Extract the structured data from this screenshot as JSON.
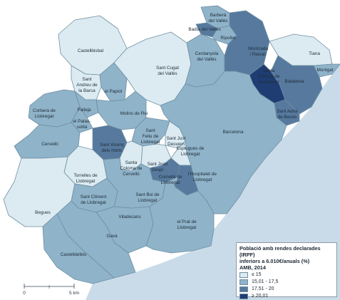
{
  "map": {
    "colors": {
      "sea": "#c9dbe8",
      "class_1": "#dcebf1",
      "class_2": "#8fb3c8",
      "class_3": "#56799d",
      "class_4": "#1f3d72"
    },
    "municipalities": [
      {
        "name": "Castellbisbal",
        "class": "class_1"
      },
      {
        "name": "Sant Andreu de la Barca",
        "class": "class_1"
      },
      {
        "name": "el Papiol",
        "class": "class_2"
      },
      {
        "name": "Sant Cugat del Vallès",
        "class": "class_1"
      },
      {
        "name": "Cerdanyola del Vallès",
        "class": "class_2"
      },
      {
        "name": "Barberà del Vallès",
        "class": "class_2"
      },
      {
        "name": "Badia del Vallès",
        "class": "class_3"
      },
      {
        "name": "Ripollet",
        "class": "class_2"
      },
      {
        "name": "Montcada i Reixac",
        "class": "class_3"
      },
      {
        "name": "Tiana",
        "class": "class_1"
      },
      {
        "name": "Montgat",
        "class": "class_2"
      },
      {
        "name": "Badalona",
        "class": "class_3"
      },
      {
        "name": "Santa Coloma de Gramenet",
        "class": "class_4"
      },
      {
        "name": "Sant Adrià de Besòs",
        "class": "class_3"
      },
      {
        "name": "Barcelona",
        "class": "class_2"
      },
      {
        "name": "Corbera de Llobregat",
        "class": "class_2"
      },
      {
        "name": "Pallejà",
        "class": "class_2"
      },
      {
        "name": "el Palau-solità",
        "class": "class_2"
      },
      {
        "name": "Molins de Rei",
        "class": "class_2"
      },
      {
        "name": "Cervelló",
        "class": "class_2"
      },
      {
        "name": "Sant Vicenç dels Horts",
        "class": "class_3"
      },
      {
        "name": "Sant Feliu de Llobregat",
        "class": "class_2"
      },
      {
        "name": "Sant Just Desvern",
        "class": "class_1"
      },
      {
        "name": "Esplugues de Llobregat",
        "class": "class_1"
      },
      {
        "name": "Santa Coloma de Cervelló",
        "class": "class_1"
      },
      {
        "name": "Sant Joan Despí",
        "class": "class_1"
      },
      {
        "name": "Torrelles de Llobregat",
        "class": "class_1"
      },
      {
        "name": "Cornellà de Llobregat",
        "class": "class_3"
      },
      {
        "name": "l'Hospitalet de Llobregat",
        "class": "class_3"
      },
      {
        "name": "Begues",
        "class": "class_1"
      },
      {
        "name": "Sant Climent de Llobregat",
        "class": "class_2"
      },
      {
        "name": "Sant Boi de Llobregat",
        "class": "class_2"
      },
      {
        "name": "Viladecans",
        "class": "class_2"
      },
      {
        "name": "el Prat de Llobregat",
        "class": "class_2"
      },
      {
        "name": "Gavà",
        "class": "class_2"
      },
      {
        "name": "Castelldefels",
        "class": "class_2"
      }
    ],
    "labels": {
      "castellbisbal": "Castellbisbal",
      "sant_andreu_1": "Sant",
      "sant_andreu_2": "Andreu de",
      "sant_andreu_3": "la Barca",
      "el_papiol": "el Papiol",
      "sant_cugat_1": "Sant Cugat",
      "sant_cugat_2": "del Vallès",
      "cerdanyola_1": "Cerdanyola",
      "cerdanyola_2": "del Vallès",
      "barbera_1": "Barberà",
      "barbera_2": "del Vallès",
      "badia": "Badia del Vallès",
      "ripollet": "Ripollet",
      "montcada_1": "Montcada",
      "montcada_2": "i Reixac",
      "tiana": "Tiana",
      "montgat": "Montgat",
      "badalona": "Badalona",
      "santa_coloma_g_1": "Santa",
      "santa_coloma_g_2": "Coloma de",
      "santa_coloma_g_3": "Gramenet",
      "sant_adria_1": "Sant Adrià",
      "sant_adria_2": "de Besòs",
      "barcelona": "Barcelona",
      "corbera_1": "Corbera de",
      "corbera_2": "Llobregat",
      "palleja": "Pallejà",
      "palau_1": "el Palau-",
      "palau_2": "solità",
      "molins": "Molins de Rei",
      "cervello": "Cervelló",
      "sant_vicenc_1": "Sant Vicenç",
      "sant_vicenc_2": "dels Horts",
      "sant_feliu_1": "Sant",
      "sant_feliu_2": "Feliu de",
      "sant_feliu_3": "Llobregat",
      "sant_just_1": "Sant Just",
      "sant_just_2": "Desvern",
      "esplugues_1": "Esplugues de",
      "esplugues_2": "Llobregat",
      "santa_coloma_c_1": "Santa",
      "santa_coloma_c_2": "Coloma de",
      "santa_coloma_c_3": "Cervelló",
      "sant_joan_1": "Sant Joan",
      "sant_joan_2": "Despí",
      "torrelles_1": "Torrelles de",
      "torrelles_2": "Llobregat",
      "cornella_1": "Cornellà de",
      "cornella_2": "Llobregat",
      "hospitalet_1": "l'Hospitalet de",
      "hospitalet_2": "Llobregat",
      "begues": "Begues",
      "sant_climent_1": "Sant Climent",
      "sant_climent_2": "de Llobregat",
      "sant_boi_1": "Sant Boi de",
      "sant_boi_2": "Llobregat",
      "viladecans": "Viladecans",
      "el_prat_1": "el Prat de",
      "el_prat_2": "Llobregat",
      "gava": "Gavà",
      "castelldefels": "Castelldefels"
    },
    "scale": {
      "zero": "0",
      "five": "5 km"
    }
  },
  "legend": {
    "title": "Població amb rendes declarades (IRPF)",
    "subtitle_1": "inferiors a 6.010€/anuals (%)",
    "subtitle_2": "AMB, 2014",
    "items": [
      {
        "label": "≤ 15",
        "color": "#dcebf1"
      },
      {
        "label": "15,01 - 17,5",
        "color": "#8fb3c8"
      },
      {
        "label": "17,51 - 20",
        "color": "#56799d"
      },
      {
        "label": "≥ 20,01",
        "color": "#1f3d72"
      }
    ]
  }
}
